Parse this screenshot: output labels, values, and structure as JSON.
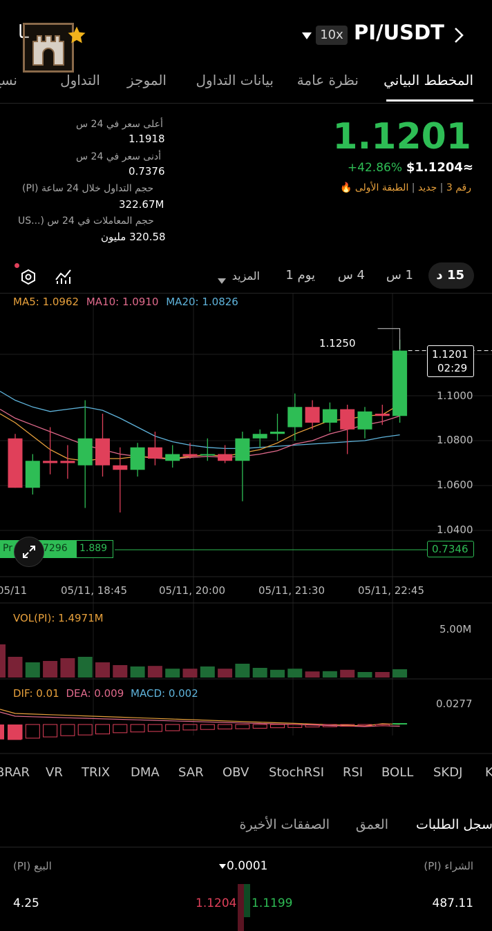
{
  "header": {
    "pair": "PI/USDT",
    "leverage": "10x",
    "logo_text": "ـا"
  },
  "tabs": [
    {
      "label": "المخطط البياني",
      "active": true
    },
    {
      "label": "نظرة عامة"
    },
    {
      "label": "بيانات التداول"
    },
    {
      "label": "الموجز"
    },
    {
      "label": "التداول"
    },
    {
      "label": "نسخ"
    }
  ],
  "price": {
    "last": "1.1201",
    "change_pct": "+42.86%",
    "usd_value": "$1.1204≈",
    "tags": {
      "rank": "رقم 3",
      "new": "جديد",
      "tier": "الطبقة الأولى"
    }
  },
  "stats": [
    {
      "label": "أعلى سعر في 24 س",
      "value": "1.1918"
    },
    {
      "label": "أدنى سعر في 24 س",
      "value": "0.7376"
    },
    {
      "label": "حجم التداول خلال 24 ساعة (PI)",
      "value": "322.67M"
    },
    {
      "label": "حجم المعاملات في 24 س (...US",
      "value": "320.58 مليون"
    }
  ],
  "intervals": [
    {
      "label": "15 د",
      "active": true
    },
    {
      "label": "1 س"
    },
    {
      "label": "4 س"
    },
    {
      "label": "يوم 1"
    },
    {
      "label": "المزيد"
    }
  ],
  "ma": {
    "ma5": "MA5: 1.0962",
    "ma10": "MA10: 1.0910",
    "ma20": "MA20: 1.0826"
  },
  "price_tag": {
    "price": "1.1201",
    "countdown": "02:29"
  },
  "min_price_tag": "0.7346",
  "left_tag": {
    "text": "7296",
    "value": "1.889",
    "prefix": "Pr"
  },
  "vol_label": "VOL(PI): 1.4971M",
  "vol_axis": "5.00M",
  "macd": {
    "dif": "DIF: 0.01",
    "dea": "DEA: 0.009",
    "macd": "MACD: 0.002",
    "axis": "0.0277"
  },
  "indicators": [
    "BRAR",
    "VR",
    "TRIX",
    "DMA",
    "SAR",
    "OBV",
    "StochRSI",
    "RSI",
    "BOLL",
    "SKDJ",
    "K"
  ],
  "orderbook": {
    "tabs": [
      {
        "label": "سجل الطلبات",
        "active": true
      },
      {
        "label": "العمق"
      },
      {
        "label": "الصفقات الأخيرة"
      }
    ],
    "sell_header": "البيع (PI)",
    "buy_header": "الشراء (PI)",
    "precision": "0.0001",
    "row": {
      "sell_qty": "4.25",
      "sell_price": "1.1204",
      "buy_price": "1.1199",
      "buy_qty": "487.11"
    }
  },
  "colors": {
    "up": "#2ebd55",
    "down": "#e0405a",
    "accent": "#e8a13c"
  },
  "chart_data": {
    "type": "candlestick",
    "y_ticks": [
      "1.1000",
      "1.0800",
      "1.0600",
      "1.0400"
    ],
    "x_ticks": [
      "05/11, 18:45",
      "05/11, 20:00",
      "05/11, 21:30",
      "05/11, 22:45"
    ],
    "x_ticks_partial": "05/11",
    "ylim": [
      1.038,
      1.127
    ],
    "max_label": "1.1250",
    "candles": [
      {
        "o": 1.081,
        "h": 1.083,
        "l": 1.059,
        "c": 1.059
      },
      {
        "o": 1.059,
        "h": 1.074,
        "l": 1.056,
        "c": 1.071
      },
      {
        "o": 1.071,
        "h": 1.086,
        "l": 1.065,
        "c": 1.07
      },
      {
        "o": 1.071,
        "h": 1.078,
        "l": 1.063,
        "c": 1.07
      },
      {
        "o": 1.069,
        "h": 1.098,
        "l": 1.05,
        "c": 1.081
      },
      {
        "o": 1.081,
        "h": 1.092,
        "l": 1.064,
        "c": 1.069
      },
      {
        "o": 1.069,
        "h": 1.077,
        "l": 1.048,
        "c": 1.067
      },
      {
        "o": 1.067,
        "h": 1.079,
        "l": 1.064,
        "c": 1.077
      },
      {
        "o": 1.077,
        "h": 1.084,
        "l": 1.069,
        "c": 1.072
      },
      {
        "o": 1.071,
        "h": 1.078,
        "l": 1.068,
        "c": 1.074
      },
      {
        "o": 1.074,
        "h": 1.079,
        "l": 1.072,
        "c": 1.073
      },
      {
        "o": 1.074,
        "h": 1.081,
        "l": 1.071,
        "c": 1.074
      },
      {
        "o": 1.074,
        "h": 1.078,
        "l": 1.07,
        "c": 1.071
      },
      {
        "o": 1.071,
        "h": 1.084,
        "l": 1.053,
        "c": 1.081
      },
      {
        "o": 1.081,
        "h": 1.085,
        "l": 1.077,
        "c": 1.083
      },
      {
        "o": 1.083,
        "h": 1.092,
        "l": 1.08,
        "c": 1.084
      },
      {
        "o": 1.086,
        "h": 1.101,
        "l": 1.08,
        "c": 1.095
      },
      {
        "o": 1.095,
        "h": 1.098,
        "l": 1.085,
        "c": 1.088
      },
      {
        "o": 1.088,
        "h": 1.097,
        "l": 1.084,
        "c": 1.094
      },
      {
        "o": 1.094,
        "h": 1.096,
        "l": 1.074,
        "c": 1.085
      },
      {
        "o": 1.085,
        "h": 1.095,
        "l": 1.081,
        "c": 1.093
      },
      {
        "o": 1.092,
        "h": 1.096,
        "l": 1.087,
        "c": 1.091
      },
      {
        "o": 1.091,
        "h": 1.125,
        "l": 1.088,
        "c": 1.1201
      }
    ],
    "ma5": [
      1.088,
      1.082,
      1.076,
      1.072,
      1.071,
      1.072,
      1.072,
      1.073,
      1.0725,
      1.072,
      1.073,
      1.0738,
      1.073,
      1.0745,
      1.076,
      1.079,
      1.083,
      1.086,
      1.089,
      1.0895,
      1.091,
      1.0915,
      1.0962
    ],
    "ma10": [
      1.09,
      1.087,
      1.084,
      1.081,
      1.078,
      1.076,
      1.074,
      1.073,
      1.0722,
      1.0718,
      1.0725,
      1.073,
      1.0726,
      1.073,
      1.074,
      1.0755,
      1.0785,
      1.08,
      1.083,
      1.085,
      1.087,
      1.0885,
      1.091
    ],
    "ma20": [
      1.098,
      1.095,
      1.093,
      1.094,
      1.095,
      1.0935,
      1.09,
      1.086,
      1.082,
      1.0795,
      1.078,
      1.077,
      1.0765,
      1.0765,
      1.077,
      1.0775,
      1.078,
      1.0785,
      1.079,
      1.0795,
      1.08,
      1.0815,
      1.0826
    ],
    "volume": [
      0.75,
      0.55,
      0.6,
      0.7,
      0.75,
      0.55,
      0.45,
      0.4,
      0.42,
      0.32,
      0.32,
      0.4,
      0.32,
      0.5,
      0.35,
      0.28,
      0.32,
      0.22,
      0.23,
      0.28,
      0.2,
      0.2,
      0.3
    ],
    "volume_left": 1.2,
    "macd_hist": [
      -0.6,
      -0.55,
      -0.5,
      -0.45,
      -0.42,
      -0.38,
      -0.33,
      -0.3,
      -0.28,
      -0.25,
      -0.22,
      -0.2,
      -0.18,
      -0.17,
      -0.15,
      -0.13,
      -0.12,
      -0.1,
      -0.09,
      -0.07,
      -0.05,
      -0.03,
      0.05
    ],
    "macd_hist_left": [
      -0.6,
      -0.62
    ]
  }
}
